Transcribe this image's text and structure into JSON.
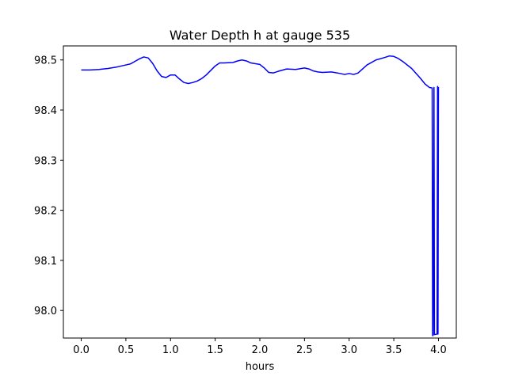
{
  "chart_data": {
    "type": "line",
    "title": "Water Depth h at gauge 535",
    "xlabel": "hours",
    "ylabel": "",
    "xlim": [
      -0.2,
      4.2
    ],
    "ylim": [
      97.945,
      98.528
    ],
    "xticks": [
      0.0,
      0.5,
      1.0,
      1.5,
      2.0,
      2.5,
      3.0,
      3.5,
      4.0
    ],
    "xtick_labels": [
      "0.0",
      "0.5",
      "1.0",
      "1.5",
      "2.0",
      "2.5",
      "3.0",
      "3.5",
      "4.0"
    ],
    "yticks": [
      98.0,
      98.1,
      98.2,
      98.3,
      98.4,
      98.5
    ],
    "ytick_labels": [
      "98.0",
      "98.1",
      "98.2",
      "98.3",
      "98.4",
      "98.5"
    ],
    "grid": false,
    "legend": "none",
    "series": [
      {
        "color": "#0000ff",
        "x": [
          0.0,
          0.1,
          0.2,
          0.3,
          0.4,
          0.5,
          0.55,
          0.6,
          0.65,
          0.7,
          0.75,
          0.8,
          0.85,
          0.9,
          0.95,
          1.0,
          1.05,
          1.1,
          1.15,
          1.2,
          1.25,
          1.3,
          1.35,
          1.4,
          1.5,
          1.55,
          1.6,
          1.7,
          1.75,
          1.8,
          1.85,
          1.9,
          2.0,
          2.05,
          2.1,
          2.15,
          2.2,
          2.3,
          2.4,
          2.5,
          2.55,
          2.6,
          2.65,
          2.7,
          2.8,
          2.9,
          2.95,
          3.0,
          3.05,
          3.1,
          3.2,
          3.3,
          3.4,
          3.45,
          3.5,
          3.55,
          3.6,
          3.7,
          3.8,
          3.85,
          3.9,
          3.93,
          3.935,
          3.94,
          3.95,
          3.955,
          3.96,
          3.985,
          3.99,
          3.995,
          4.0
        ],
        "y": [
          98.48,
          98.48,
          98.481,
          98.483,
          98.486,
          98.49,
          98.492,
          98.497,
          98.502,
          98.506,
          98.504,
          98.493,
          98.478,
          98.467,
          98.465,
          98.47,
          98.47,
          98.462,
          98.455,
          98.453,
          98.455,
          98.458,
          98.463,
          98.47,
          98.488,
          98.494,
          98.494,
          98.495,
          98.498,
          98.5,
          98.498,
          98.494,
          98.491,
          98.484,
          98.475,
          98.474,
          98.477,
          98.482,
          98.481,
          98.484,
          98.482,
          98.478,
          98.476,
          98.475,
          98.476,
          98.473,
          98.471,
          98.473,
          98.471,
          98.474,
          98.49,
          98.5,
          98.505,
          98.508,
          98.507,
          98.503,
          98.497,
          98.483,
          98.463,
          98.452,
          98.445,
          98.444,
          97.95,
          97.95,
          98.445,
          97.952,
          97.952,
          97.953,
          98.447,
          97.953,
          98.446
        ]
      }
    ]
  }
}
